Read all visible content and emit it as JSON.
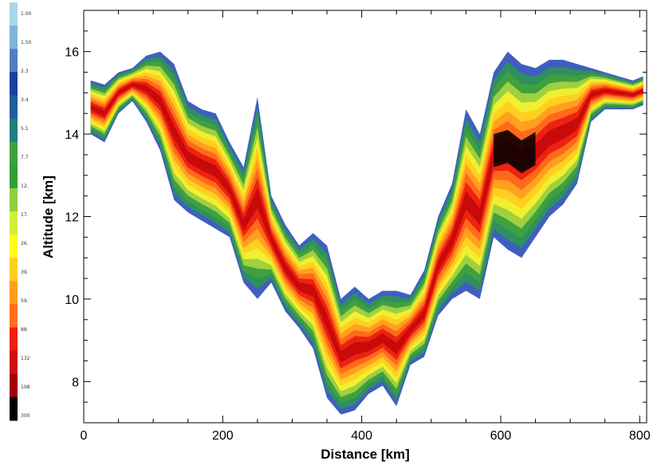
{
  "chart_data": {
    "type": "heatmap",
    "title": "",
    "xlabel": "Distance [km]",
    "ylabel": "Altitude [km]",
    "xlim": [
      0,
      810
    ],
    "ylim": [
      7,
      17
    ],
    "x_ticks": [
      0,
      200,
      400,
      600,
      800
    ],
    "y_ticks": [
      8,
      10,
      12,
      14,
      16
    ],
    "x_tick_labels": [
      "0",
      "200",
      "400",
      "600",
      "800"
    ],
    "y_tick_labels": [
      "8",
      "10",
      "12",
      "14",
      "16"
    ],
    "grid": false,
    "colorbar": {
      "position": "left",
      "labels": [
        "1.00",
        "1.50",
        "2.3",
        "3.4",
        "5.1",
        "7.7",
        "12.",
        "17.",
        "26.",
        "39.",
        "59.",
        "88.",
        "132",
        "198",
        "300"
      ],
      "colors": [
        "#a8d8ea",
        "#7fb6d8",
        "#4f7fbf",
        "#1f3f9f",
        "#1f5f9f",
        "#1f7f7f",
        "#3f9f3f",
        "#2f9f2f",
        "#8fcf3f",
        "#cfef3f",
        "#ffff1f",
        "#ffcf1f",
        "#ff9f1f",
        "#ff6f1f",
        "#ef1f0f",
        "#cf0f0f",
        "#9f0000",
        "#000000"
      ]
    },
    "series": [
      {
        "x": [
          10,
          30,
          50,
          70,
          90,
          110,
          130,
          150,
          170,
          190,
          210,
          230,
          250,
          270,
          290,
          310,
          330,
          350,
          370,
          390,
          410,
          430,
          450,
          470,
          490,
          510,
          530,
          550,
          570,
          590,
          610,
          630,
          650,
          670,
          690,
          710,
          730,
          750,
          770,
          790,
          805
        ],
        "top": [
          15.3,
          15.2,
          15.5,
          15.6,
          15.9,
          16.0,
          15.7,
          14.8,
          14.6,
          14.5,
          13.8,
          13.2,
          14.9,
          12.5,
          11.8,
          11.3,
          11.6,
          11.3,
          10.0,
          10.3,
          10.0,
          10.2,
          10.2,
          10.1,
          10.7,
          12.0,
          12.8,
          14.6,
          14.0,
          15.5,
          16.0,
          15.7,
          15.6,
          15.8,
          15.8,
          15.7,
          15.6,
          15.5,
          15.4,
          15.3,
          15.4
        ],
        "bottom": [
          14.0,
          13.8,
          14.5,
          14.8,
          14.3,
          13.6,
          12.4,
          12.1,
          11.9,
          11.7,
          11.5,
          10.4,
          10.0,
          10.4,
          9.7,
          9.3,
          8.8,
          7.6,
          7.2,
          7.3,
          7.7,
          7.9,
          7.4,
          8.4,
          8.6,
          9.6,
          10.0,
          10.2,
          10.0,
          11.5,
          11.2,
          11.0,
          11.5,
          12.0,
          12.3,
          12.8,
          14.3,
          14.6,
          14.6,
          14.6,
          14.7
        ],
        "peak": [
          0.4,
          0.5,
          0.6,
          0.8,
          0.9,
          0.6,
          0.4,
          0.6,
          0.7,
          0.8,
          0.9,
          0.9,
          0.8,
          0.7,
          0.7,
          0.8,
          0.8,
          0.5,
          0.4,
          0.5,
          0.6,
          0.5,
          0.5,
          0.7,
          0.8,
          0.8,
          0.9,
          0.9,
          0.9,
          1.0,
          1.0,
          1.0,
          1.0,
          0.9,
          0.8,
          0.7,
          0.6,
          0.5,
          0.5,
          0.4,
          0.4
        ]
      }
    ]
  }
}
